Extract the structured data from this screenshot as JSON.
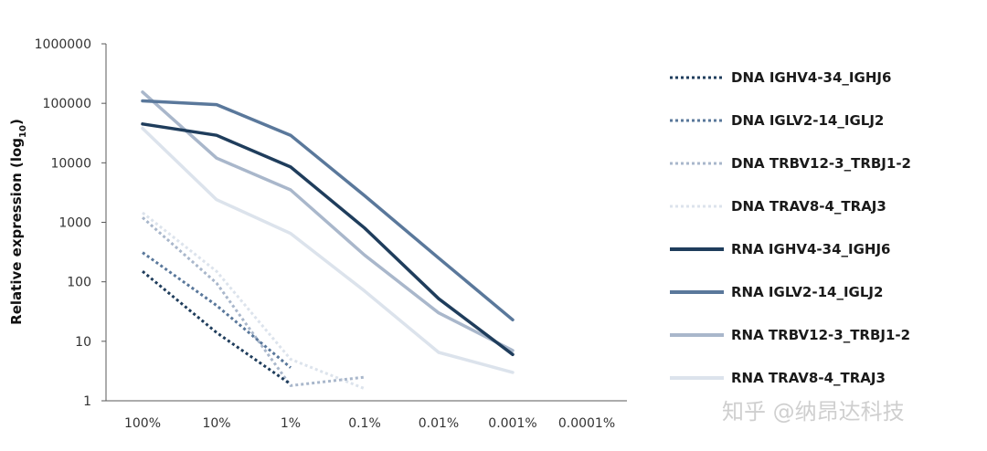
{
  "chart_data": {
    "type": "line",
    "title": "",
    "ylabel": "Relative expression (log10)",
    "ylabel_main": "Relative expression (log",
    "ylabel_sub": "10",
    "ylabel_close": ")",
    "xlabel": "",
    "yscale": "log",
    "ylim": [
      1,
      1000000
    ],
    "y_ticks": [
      1,
      10,
      100,
      1000,
      10000,
      100000,
      1000000
    ],
    "y_tick_labels": [
      "1",
      "10",
      "100",
      "1000",
      "10000",
      "100000",
      "1000000"
    ],
    "categories": [
      "100%",
      "10%",
      "1%",
      "0.1%",
      "0.01%",
      "0.001%",
      "0.0001%"
    ],
    "grid": false,
    "legend_position": "right",
    "series": [
      {
        "name": "DNA IGHV4-34_IGHJ6",
        "color": "#1f3d5c",
        "dashed": true,
        "values": [
          150,
          14,
          1.9,
          null,
          null,
          null,
          null
        ]
      },
      {
        "name": "DNA IGLV2-14_IGLJ2",
        "color": "#5a789b",
        "dashed": true,
        "values": [
          310,
          40,
          3.6,
          null,
          null,
          null,
          null
        ]
      },
      {
        "name": "DNA TRBV12-3_TRBJ1-2",
        "color": "#a9b7cb",
        "dashed": true,
        "values": [
          1200,
          95,
          1.8,
          2.5,
          null,
          null,
          null
        ]
      },
      {
        "name": "DNA TRAV8-4_TRAJ3",
        "color": "#dce3ec",
        "dashed": true,
        "values": [
          1450,
          150,
          5,
          1.6,
          null,
          null,
          null
        ]
      },
      {
        "name": "RNA IGHV4-34_IGHJ6",
        "color": "#1f3d5c",
        "dashed": false,
        "values": [
          45000,
          29000,
          8500,
          800,
          52,
          6,
          null
        ]
      },
      {
        "name": "RNA IGLV2-14_IGLJ2",
        "color": "#5a789b",
        "dashed": false,
        "values": [
          110000,
          95000,
          29000,
          2800,
          250,
          23,
          null
        ]
      },
      {
        "name": "RNA TRBV12-3_TRBJ1-2",
        "color": "#a9b7cb",
        "dashed": false,
        "values": [
          155000,
          12000,
          3500,
          280,
          30,
          7,
          null
        ]
      },
      {
        "name": "RNA TRAV8-4_TRAJ3",
        "color": "#dce3ec",
        "dashed": false,
        "values": [
          38000,
          2400,
          650,
          70,
          6.5,
          3,
          null
        ]
      }
    ]
  },
  "watermark": "知乎 @纳昂达科技"
}
